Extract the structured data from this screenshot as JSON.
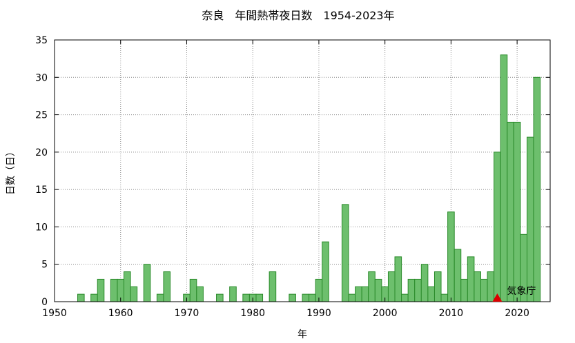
{
  "chart_data": {
    "type": "bar",
    "title": "奈良　年間熱帯夜日数　1954-2023年",
    "xlabel": "年",
    "ylabel": "日数（日）",
    "xlim": [
      1950,
      2025
    ],
    "ylim": [
      0,
      35
    ],
    "xticks": [
      "1950",
      "1960",
      "1970",
      "1980",
      "1990",
      "2000",
      "2010",
      "2020"
    ],
    "yticks": [
      "0",
      "5",
      "10",
      "15",
      "20",
      "25",
      "30",
      "35"
    ],
    "grid": true,
    "bar_color": "#6dbf6d",
    "bar_edge_color": "#2a8a2a",
    "x": [
      1954,
      1955,
      1956,
      1957,
      1958,
      1959,
      1960,
      1961,
      1962,
      1963,
      1964,
      1965,
      1966,
      1967,
      1968,
      1969,
      1970,
      1971,
      1972,
      1973,
      1974,
      1975,
      1976,
      1977,
      1978,
      1979,
      1980,
      1981,
      1982,
      1983,
      1984,
      1985,
      1986,
      1987,
      1988,
      1989,
      1990,
      1991,
      1992,
      1993,
      1994,
      1995,
      1996,
      1997,
      1998,
      1999,
      2000,
      2001,
      2002,
      2003,
      2004,
      2005,
      2006,
      2007,
      2008,
      2009,
      2010,
      2011,
      2012,
      2013,
      2014,
      2015,
      2016,
      2017,
      2018,
      2019,
      2020,
      2021,
      2022,
      2023
    ],
    "values": [
      1,
      0,
      1,
      3,
      0,
      3,
      3,
      4,
      2,
      0,
      5,
      0,
      1,
      4,
      0,
      0,
      1,
      3,
      2,
      0,
      0,
      1,
      0,
      2,
      0,
      1,
      1,
      1,
      0,
      4,
      0,
      0,
      1,
      0,
      1,
      1,
      3,
      8,
      0,
      0,
      13,
      1,
      2,
      2,
      4,
      3,
      2,
      4,
      6,
      1,
      3,
      3,
      5,
      2,
      4,
      1,
      12,
      7,
      3,
      6,
      4,
      3,
      4,
      20,
      33,
      24,
      24,
      9,
      22,
      30
    ],
    "annotation": {
      "label": "気象庁",
      "year": 2017,
      "value": 0,
      "marker_color": "#dd0000"
    }
  }
}
